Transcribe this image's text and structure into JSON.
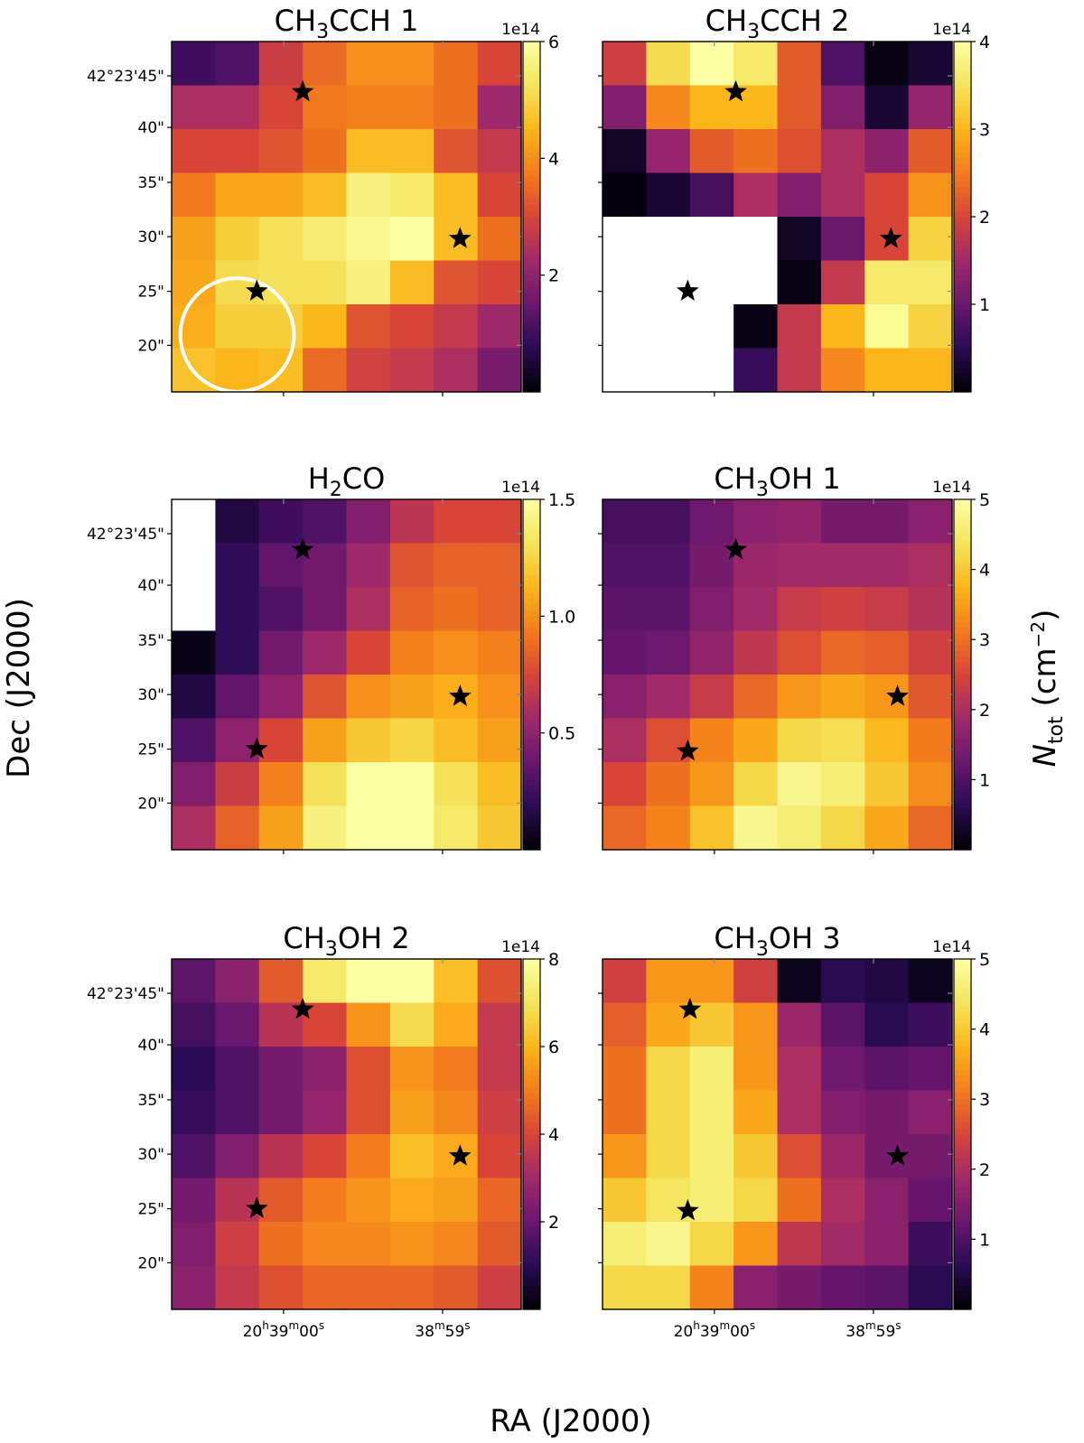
{
  "figure": {
    "xlabel": "RA (J2000)",
    "ylabel": "Dec (J2000)",
    "cbar_label": "N",
    "cbar_label_sub": "tot",
    "cbar_label_unit": " (cm",
    "cbar_label_exp": "−2",
    "cbar_label_close": ")",
    "ra_ticks": [
      {
        "h": "20",
        "h_unit": "h",
        "m": "39",
        "m_unit": "m",
        "s": "00",
        "s_unit": "s"
      },
      {
        "h": "",
        "h_unit": "",
        "m": "38",
        "m_unit": "m",
        "s": "59",
        "s_unit": "s"
      }
    ],
    "dec_ticks": [
      "42°23'45\"",
      "40\"",
      "35\"",
      "30\"",
      "25\"",
      "20\""
    ],
    "colormap": [
      "#000004",
      "#2a0b54",
      "#6a176e",
      "#a1296a",
      "#d84538",
      "#f47c1c",
      "#fbb61a",
      "#f4e45c",
      "#fcffa4"
    ],
    "star_color": "#000000",
    "beam_color": "#ffffff"
  },
  "chart_data": [
    {
      "type": "heatmap",
      "title": "CH",
      "title_sub": "3",
      "title_rest": "CCH 1",
      "multiplier": "1e14",
      "vmin": 0,
      "vmax": 6,
      "cbar_ticks": [
        {
          "v": 2,
          "label": "2"
        },
        {
          "v": 4,
          "label": "4"
        },
        {
          "v": 6,
          "label": "6"
        }
      ],
      "values": [
        [
          1.0,
          1.2,
          2.8,
          3.5,
          4.0,
          4.0,
          3.6,
          3.0
        ],
        [
          2.4,
          2.4,
          3.0,
          3.7,
          3.8,
          3.8,
          3.6,
          2.2
        ],
        [
          3.0,
          3.0,
          3.2,
          3.6,
          4.6,
          4.6,
          3.2,
          2.7
        ],
        [
          3.7,
          4.3,
          4.3,
          4.6,
          5.6,
          5.4,
          4.6,
          3.0
        ],
        [
          4.2,
          4.9,
          5.2,
          5.5,
          5.8,
          6.0,
          4.6,
          3.6
        ],
        [
          4.3,
          5.1,
          5.2,
          5.2,
          5.6,
          4.6,
          3.2,
          3.0
        ],
        [
          4.4,
          4.9,
          4.9,
          4.5,
          3.2,
          3.0,
          2.7,
          2.2
        ],
        [
          4.7,
          4.5,
          4.6,
          3.5,
          2.9,
          2.7,
          2.4,
          1.7
        ]
      ],
      "stars": [
        {
          "col": 3,
          "row": 1.15
        },
        {
          "col": 6.6,
          "row": 4.5
        },
        {
          "col": 1.95,
          "row": 5.7
        }
      ],
      "beam": {
        "col": 1.5,
        "row": 6.7,
        "radius_cells": 1.3
      }
    },
    {
      "type": "heatmap",
      "title": "CH",
      "title_sub": "3",
      "title_rest": "CCH 2",
      "multiplier": "1e14",
      "vmin": 0,
      "vmax": 4,
      "cbar_ticks": [
        {
          "v": 1,
          "label": "1"
        },
        {
          "v": 2,
          "label": "2"
        },
        {
          "v": 3,
          "label": "3"
        },
        {
          "v": 4,
          "label": "4"
        }
      ],
      "values": [
        [
          1.9,
          3.4,
          4.0,
          3.6,
          2.2,
          0.8,
          0.1,
          0.3
        ],
        [
          1.2,
          2.6,
          3.0,
          3.0,
          2.2,
          1.2,
          0.3,
          1.4
        ],
        [
          0.2,
          1.4,
          2.2,
          2.4,
          2.1,
          1.6,
          1.3,
          2.2
        ],
        [
          0.05,
          0.3,
          0.7,
          1.6,
          1.2,
          1.6,
          2.0,
          2.7
        ],
        [
          null,
          null,
          null,
          null,
          0.2,
          1.0,
          2.0,
          3.3
        ],
        [
          null,
          null,
          null,
          null,
          0.1,
          1.8,
          3.6,
          3.6
        ],
        [
          null,
          null,
          null,
          0.1,
          1.8,
          3.0,
          3.9,
          3.3
        ],
        [
          null,
          null,
          null,
          0.6,
          1.8,
          2.6,
          3.0,
          3.0
        ]
      ],
      "stars": [
        {
          "col": 3.05,
          "row": 1.15
        },
        {
          "col": 6.6,
          "row": 4.5
        },
        {
          "col": 1.95,
          "row": 5.7
        }
      ]
    },
    {
      "type": "heatmap",
      "title": "H",
      "title_sub": "2",
      "title_rest": "CO",
      "multiplier": "1e14",
      "vmin": 0,
      "vmax": 1.5,
      "cbar_ticks": [
        {
          "v": 0.5,
          "label": "0.5"
        },
        {
          "v": 1.0,
          "label": "1.0"
        },
        {
          "v": 1.5,
          "label": "1.5"
        }
      ],
      "values": [
        [
          null,
          0.15,
          0.25,
          0.3,
          0.45,
          0.65,
          0.75,
          0.75
        ],
        [
          null,
          0.2,
          0.35,
          0.4,
          0.55,
          0.8,
          0.85,
          0.85
        ],
        [
          null,
          0.2,
          0.3,
          0.4,
          0.6,
          0.85,
          0.9,
          0.85
        ],
        [
          0.05,
          0.2,
          0.4,
          0.55,
          0.75,
          0.95,
          1.0,
          0.95
        ],
        [
          0.15,
          0.35,
          0.5,
          0.8,
          1.0,
          1.05,
          1.1,
          1.0
        ],
        [
          0.3,
          0.5,
          0.75,
          1.05,
          1.2,
          1.25,
          1.15,
          1.05
        ],
        [
          0.45,
          0.7,
          0.95,
          1.3,
          1.5,
          1.5,
          1.3,
          1.15
        ],
        [
          0.6,
          0.85,
          1.05,
          1.4,
          1.5,
          1.5,
          1.35,
          1.2
        ]
      ],
      "stars": [
        {
          "col": 3,
          "row": 1.15
        },
        {
          "col": 6.6,
          "row": 4.5
        },
        {
          "col": 1.95,
          "row": 5.7
        }
      ]
    },
    {
      "type": "heatmap",
      "title": "CH",
      "title_sub": "3",
      "title_rest": "OH 1",
      "multiplier": "1e14",
      "vmin": 0,
      "vmax": 5,
      "cbar_ticks": [
        {
          "v": 1,
          "label": "1"
        },
        {
          "v": 2,
          "label": "2"
        },
        {
          "v": 3,
          "label": "3"
        },
        {
          "v": 4,
          "label": "4"
        },
        {
          "v": 5,
          "label": "5"
        }
      ],
      "values": [
        [
          0.9,
          0.9,
          1.3,
          1.6,
          1.7,
          1.4,
          1.4,
          1.6
        ],
        [
          1.0,
          1.0,
          1.4,
          1.8,
          1.9,
          1.9,
          1.9,
          2.0
        ],
        [
          1.1,
          1.1,
          1.5,
          1.9,
          2.3,
          2.4,
          2.3,
          2.1
        ],
        [
          1.2,
          1.3,
          1.7,
          2.2,
          2.6,
          2.9,
          2.8,
          2.4
        ],
        [
          1.6,
          1.9,
          2.3,
          2.9,
          3.4,
          3.6,
          3.4,
          2.7
        ],
        [
          2.0,
          2.6,
          3.2,
          3.6,
          4.2,
          4.3,
          3.8,
          3.1
        ],
        [
          2.5,
          3.0,
          3.4,
          4.2,
          4.8,
          4.6,
          4.0,
          3.3
        ],
        [
          2.9,
          3.2,
          3.9,
          4.8,
          4.6,
          4.2,
          3.6,
          2.9
        ]
      ],
      "stars": [
        {
          "col": 3.05,
          "row": 1.15
        },
        {
          "col": 6.75,
          "row": 4.5
        },
        {
          "col": 1.95,
          "row": 5.75
        }
      ]
    },
    {
      "type": "heatmap",
      "title": "CH",
      "title_sub": "3",
      "title_rest": "OH 2",
      "multiplier": "1e14",
      "vmin": 0,
      "vmax": 8,
      "cbar_ticks": [
        {
          "v": 2,
          "label": "2"
        },
        {
          "v": 4,
          "label": "4"
        },
        {
          "v": 6,
          "label": "6"
        },
        {
          "v": 8,
          "label": "8"
        }
      ],
      "values": [
        [
          1.8,
          2.6,
          4.4,
          7.2,
          8.0,
          8.0,
          6.2,
          4.2
        ],
        [
          1.4,
          2.0,
          3.4,
          4.0,
          5.4,
          6.8,
          5.8,
          3.6
        ],
        [
          1.0,
          1.6,
          2.2,
          2.6,
          4.2,
          5.4,
          5.0,
          3.6
        ],
        [
          1.2,
          1.6,
          2.2,
          2.8,
          4.2,
          5.6,
          5.2,
          3.8
        ],
        [
          1.6,
          2.4,
          3.4,
          4.0,
          5.0,
          6.2,
          5.8,
          4.0
        ],
        [
          2.2,
          3.4,
          4.4,
          5.0,
          5.4,
          5.8,
          5.6,
          4.6
        ],
        [
          2.4,
          3.8,
          4.8,
          5.2,
          5.2,
          5.4,
          5.2,
          4.4
        ],
        [
          2.6,
          3.6,
          4.2,
          4.6,
          4.6,
          4.6,
          4.4,
          3.8
        ]
      ],
      "stars": [
        {
          "col": 3,
          "row": 1.15
        },
        {
          "col": 6.6,
          "row": 4.5
        },
        {
          "col": 1.95,
          "row": 5.7
        }
      ]
    },
    {
      "type": "heatmap",
      "title": "CH",
      "title_sub": "3",
      "title_rest": "OH 3",
      "multiplier": "1e14",
      "vmin": 0,
      "vmax": 5,
      "cbar_ticks": [
        {
          "v": 1,
          "label": "1"
        },
        {
          "v": 2,
          "label": "2"
        },
        {
          "v": 3,
          "label": "3"
        },
        {
          "v": 4,
          "label": "4"
        },
        {
          "v": 5,
          "label": "5"
        }
      ],
      "values": [
        [
          2.4,
          3.4,
          3.4,
          2.4,
          0.2,
          0.6,
          0.5,
          0.2
        ],
        [
          2.8,
          3.6,
          4.0,
          3.4,
          1.8,
          1.1,
          0.6,
          0.8
        ],
        [
          3.0,
          4.2,
          4.6,
          3.4,
          2.0,
          1.3,
          1.1,
          1.2
        ],
        [
          3.0,
          4.2,
          4.6,
          3.6,
          2.0,
          1.5,
          1.4,
          1.6
        ],
        [
          3.4,
          4.2,
          4.6,
          4.0,
          2.6,
          1.8,
          1.4,
          1.4
        ],
        [
          4.0,
          4.4,
          4.6,
          4.2,
          3.0,
          2.0,
          1.6,
          1.2
        ],
        [
          4.6,
          4.8,
          4.2,
          3.4,
          2.2,
          1.9,
          1.6,
          0.8
        ],
        [
          4.2,
          4.2,
          3.2,
          1.6,
          1.4,
          1.2,
          1.1,
          0.6
        ]
      ],
      "stars": [
        {
          "col": 2,
          "row": 1.15
        },
        {
          "col": 6.75,
          "row": 4.5
        },
        {
          "col": 1.95,
          "row": 5.75
        }
      ]
    }
  ]
}
